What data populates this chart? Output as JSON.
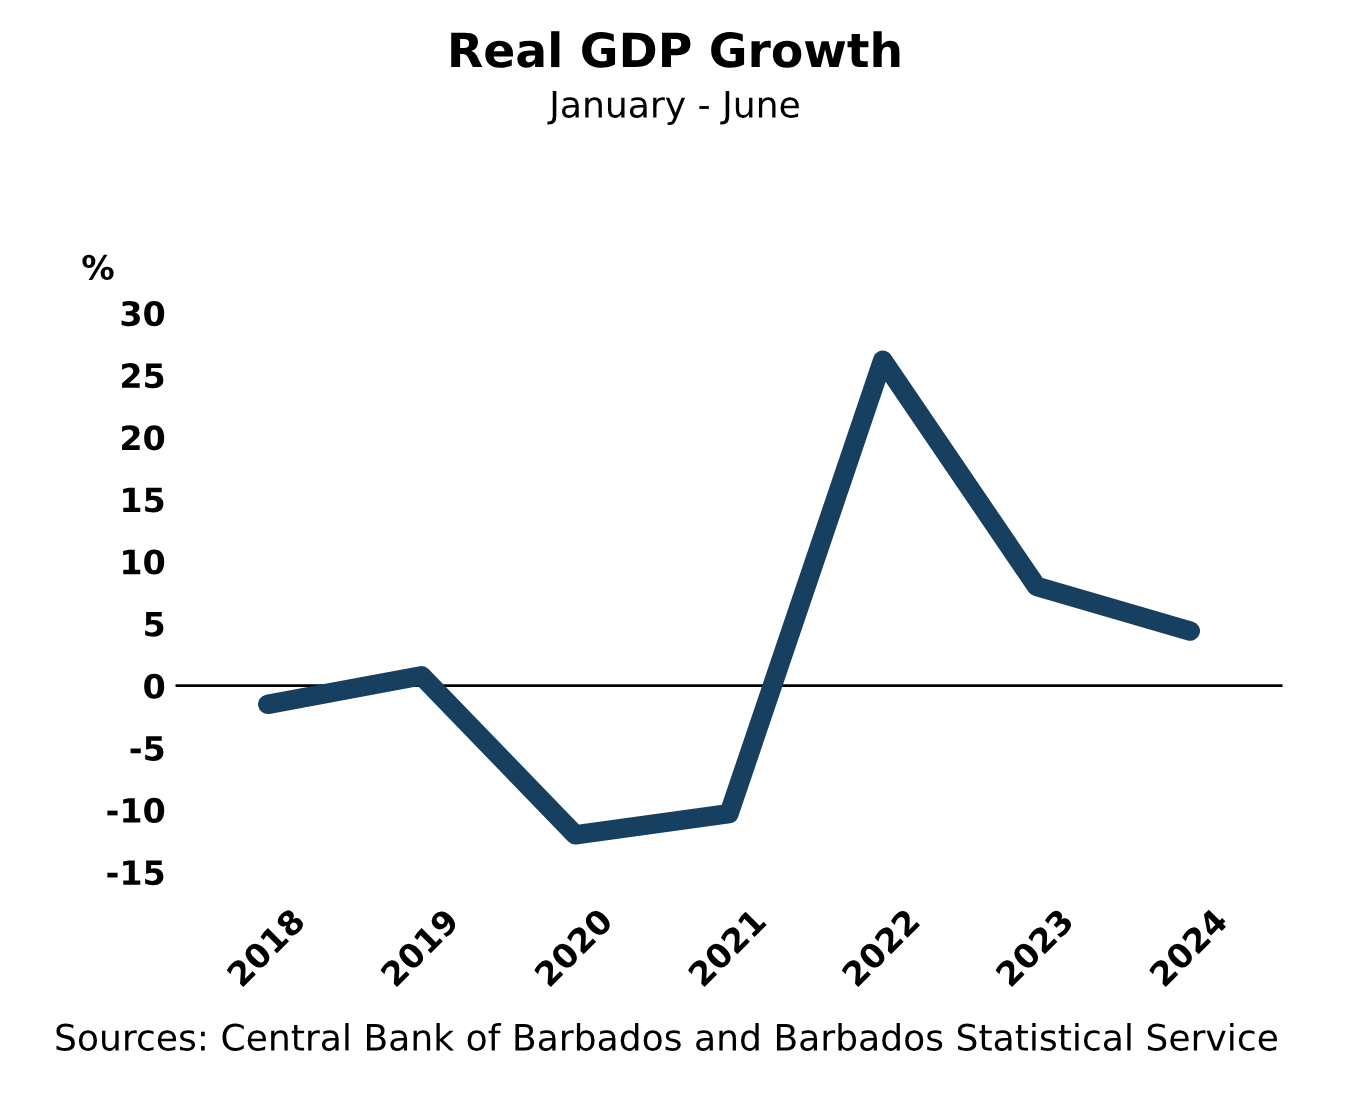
{
  "chart_data": {
    "type": "line",
    "title": "Real GDP Growth",
    "subtitle": "January - June",
    "ylabel": "%",
    "categories": [
      "2018",
      "2019",
      "2020",
      "2021",
      "2022",
      "2023",
      "2024"
    ],
    "series": [
      {
        "color": "#173f5f",
        "values": [
          -1.5,
          0.8,
          -12,
          -10.3,
          26.2,
          8,
          4.4
        ]
      }
    ],
    "ylim": [
      -15,
      30
    ],
    "yticks": [
      -15,
      -10,
      -5,
      0,
      5,
      10,
      15,
      20,
      25,
      30
    ],
    "ref_lines": [
      {
        "axis": "y",
        "value": 0,
        "color": "#000000"
      }
    ],
    "grid": false,
    "legend": false,
    "marker": "none",
    "line_style": "solid",
    "annotations": [
      "Sources: Central Bank of Barbados and Barbados Statistical Service"
    ]
  }
}
